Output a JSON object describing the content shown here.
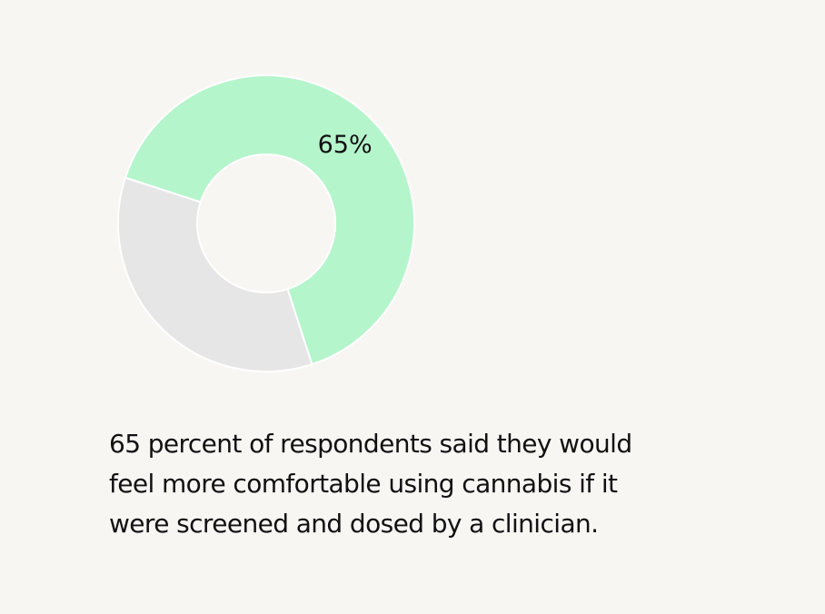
{
  "chart_data": {
    "type": "pie",
    "variant": "donut",
    "slices": [
      {
        "value": 65,
        "label": "65%",
        "color": "#b5f5cc"
      },
      {
        "value": 35,
        "label": "",
        "color": "#e6e6e6"
      }
    ],
    "start": "left",
    "direction": "clockwise",
    "title": "",
    "legend": "none"
  },
  "caption": "65 percent of respondents said they would feel more comfortable using cannabis if it were screened and dosed by a clinician.",
  "colors": {
    "background": "#f8f6f3",
    "highlight": "#b5f5cc",
    "remainder": "#e6e6e6",
    "text": "#111111"
  }
}
